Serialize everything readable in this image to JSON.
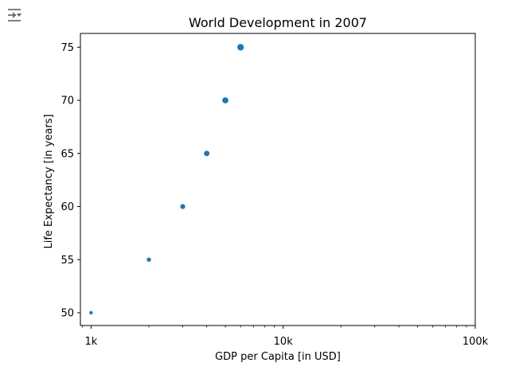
{
  "icons": {
    "output_toggle": "output-collapse-icon"
  },
  "colors": {
    "points": "#1f77b4",
    "axes": "#000000",
    "background": "#ffffff"
  },
  "chart_data": {
    "type": "scatter",
    "title": "World Development in 2007",
    "xlabel": "GDP per Capita [in USD]",
    "ylabel": "Life Expectancy [in years]",
    "xscale": "log",
    "xlim": [
      880,
      100000
    ],
    "ylim": [
      48.8,
      76.3
    ],
    "xticks": [
      1000,
      10000,
      100000
    ],
    "xtick_labels": [
      "1k",
      "10k",
      "100k"
    ],
    "yticks": [
      50,
      55,
      60,
      65,
      70,
      75
    ],
    "ytick_labels": [
      "50",
      "55",
      "60",
      "65",
      "70",
      "75"
    ],
    "grid": false,
    "legend": "none",
    "series": [
      {
        "x": [
          1000,
          2000,
          3000,
          4000,
          5000,
          6000
        ],
        "y": [
          50,
          55,
          60,
          65,
          70,
          75
        ],
        "sizes": [
          6,
          9,
          12,
          15,
          18,
          21
        ]
      }
    ]
  }
}
